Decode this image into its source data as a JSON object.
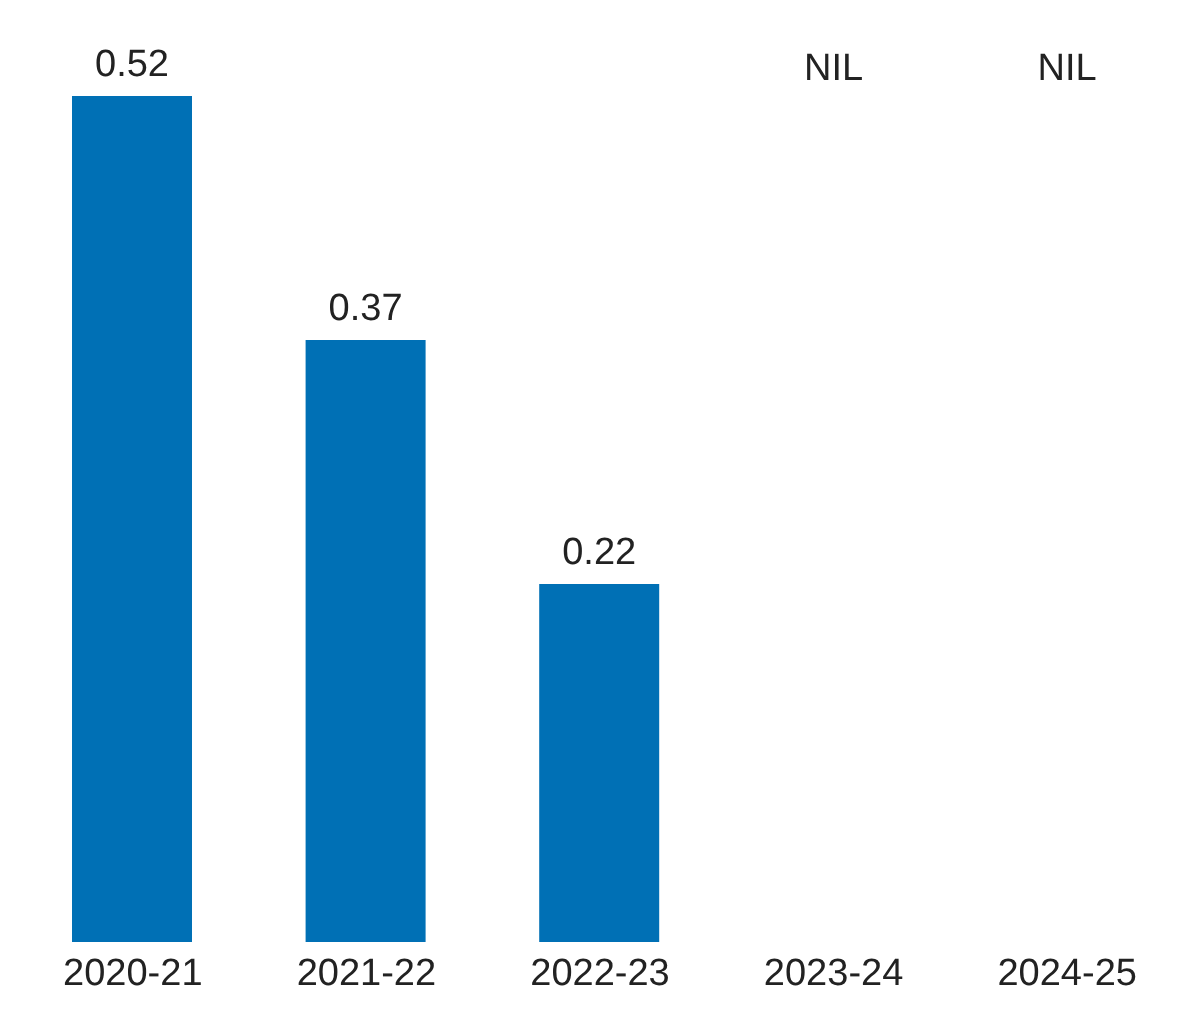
{
  "chart_data": {
    "type": "bar",
    "categories": [
      "2020-21",
      "2021-22",
      "2022-23",
      "2023-24",
      "2024-25"
    ],
    "values": [
      0.52,
      0.37,
      0.22,
      null,
      null
    ],
    "value_labels": [
      "0.52",
      "0.37",
      "0.22",
      "NIL",
      "NIL"
    ],
    "color": "#0070b5"
  }
}
